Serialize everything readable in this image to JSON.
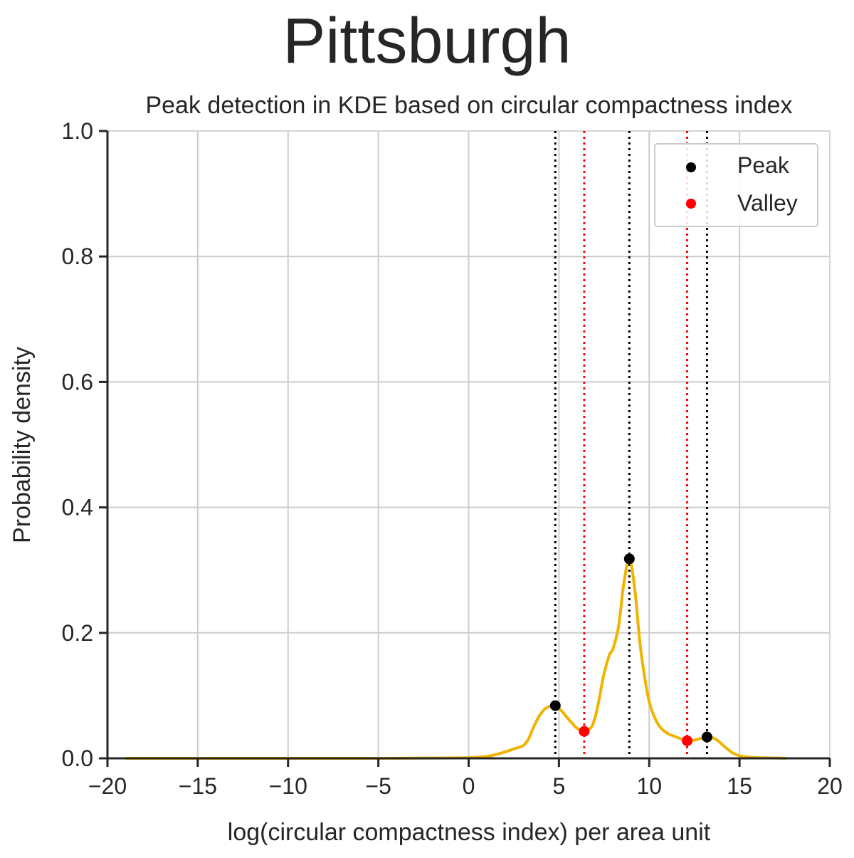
{
  "chart_data": {
    "type": "line",
    "suptitle": "Pittsburgh",
    "title": "Peak detection in KDE based on circular compactness index",
    "xlabel": "log(circular compactness index) per area unit",
    "ylabel": "Probability density",
    "xlim": [
      -20,
      20
    ],
    "ylim": [
      0,
      1.0
    ],
    "xticks": [
      -20,
      -15,
      -10,
      -5,
      0,
      5,
      10,
      15,
      20
    ],
    "xtick_labels": [
      "−20",
      "−15",
      "−10",
      "−5",
      "0",
      "5",
      "10",
      "15",
      "20"
    ],
    "yticks": [
      0,
      0.2,
      0.4,
      0.6,
      0.8,
      1.0
    ],
    "ytick_labels": [
      "0.0",
      "0.2",
      "0.4",
      "0.6",
      "0.8",
      "1.0"
    ],
    "grid": true,
    "legend_position": "top-right",
    "series": [
      {
        "kind": "kde-curve",
        "color": "#f0b400",
        "x": [
          -19,
          -10,
          -5,
          -2,
          0,
          1,
          1.5,
          2,
          2.5,
          3,
          3.3,
          3.6,
          3.9,
          4.2,
          4.5,
          4.8,
          5.1,
          5.4,
          5.7,
          6.0,
          6.4,
          6.8,
          7.0,
          7.2,
          7.5,
          7.8,
          8.0,
          8.3,
          8.6,
          8.9,
          9.2,
          9.5,
          9.8,
          10.0,
          10.3,
          10.6,
          11.0,
          11.5,
          12.1,
          12.5,
          12.9,
          13.2,
          13.5,
          13.8,
          14.2,
          14.6,
          15.0,
          15.5,
          16.0,
          17.0,
          17.6
        ],
        "y": [
          0,
          0,
          0,
          0.0005,
          0.001,
          0.003,
          0.006,
          0.01,
          0.015,
          0.02,
          0.03,
          0.05,
          0.067,
          0.078,
          0.083,
          0.084,
          0.077,
          0.067,
          0.057,
          0.048,
          0.043,
          0.05,
          0.065,
          0.09,
          0.135,
          0.165,
          0.175,
          0.21,
          0.28,
          0.318,
          0.27,
          0.18,
          0.12,
          0.09,
          0.065,
          0.05,
          0.04,
          0.034,
          0.028,
          0.029,
          0.032,
          0.034,
          0.033,
          0.028,
          0.018,
          0.009,
          0.004,
          0.002,
          0.001,
          0.0005,
          0
        ]
      }
    ],
    "peaks": {
      "name": "Peak",
      "color": "#000000",
      "x": [
        4.8,
        8.9,
        13.2
      ],
      "y": [
        0.084,
        0.318,
        0.034
      ]
    },
    "valleys": {
      "name": "Valley",
      "color": "#ff0000",
      "x": [
        6.4,
        12.1
      ],
      "y": [
        0.043,
        0.028
      ]
    }
  }
}
